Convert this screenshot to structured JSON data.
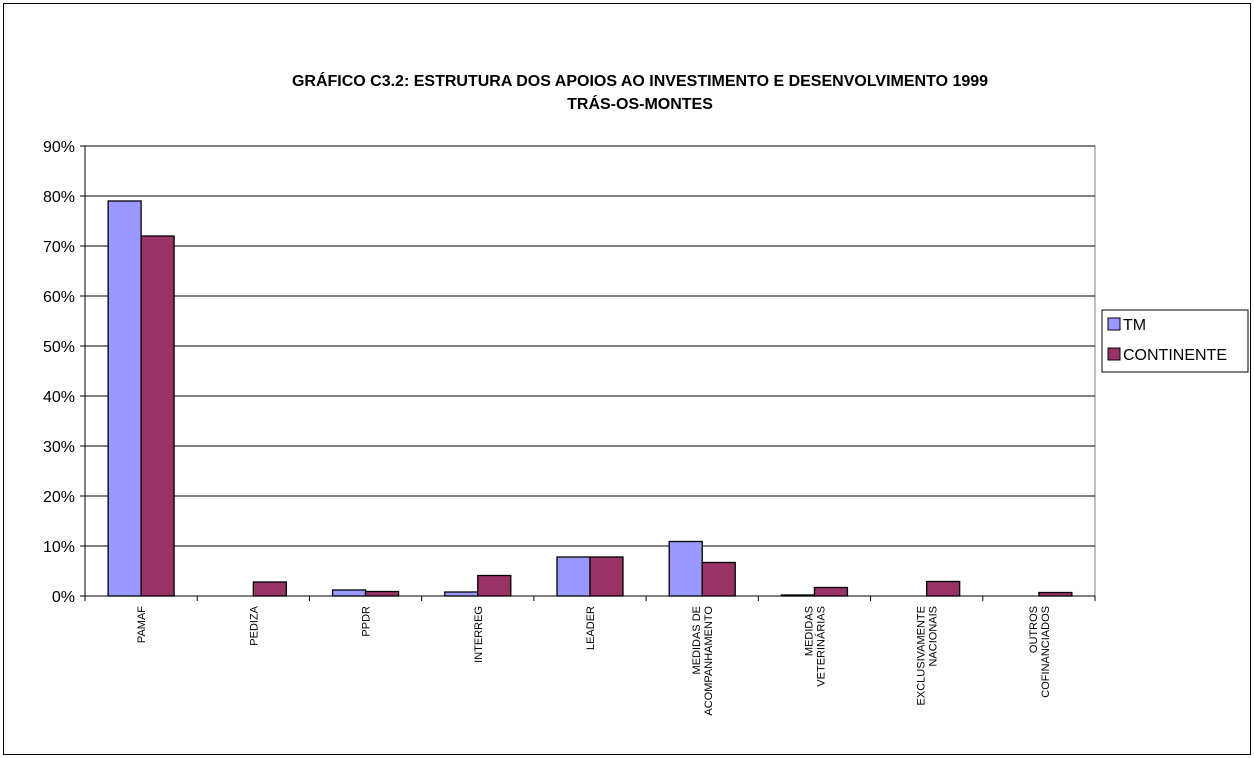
{
  "chart_data": {
    "type": "bar",
    "title": [
      "GRÁFICO C3.2: ESTRUTURA DOS APOIOS AO INVESTIMENTO E DESENVOLVIMENTO 1999",
      "TRÁS-OS-MONTES"
    ],
    "categories": [
      "PAMAF",
      "PEDIZA",
      "PPDR",
      "INTERREG",
      "LEADER",
      "MEDIDAS DE\nACOMPANHAMENTO",
      "MEDIDAS\nVETERINÁRIAS",
      "EXCLUSIVAMENTE\nNACIONAIS",
      "OUTROS\nCOFINANCIADOS"
    ],
    "series": [
      {
        "name": "TM",
        "color": "#9999ff",
        "values": [
          79,
          0,
          1.2,
          0.8,
          7.8,
          10.9,
          0.2,
          0,
          0
        ]
      },
      {
        "name": "CONTINENTE",
        "color": "#993366",
        "values": [
          72,
          2.8,
          0.9,
          4.1,
          7.8,
          6.7,
          1.7,
          2.9,
          0.7
        ]
      }
    ],
    "ylim": [
      0,
      90
    ],
    "yticks": [
      {
        "value": 0,
        "label": "0%"
      },
      {
        "value": 10,
        "label": "10%"
      },
      {
        "value": 20,
        "label": "20%"
      },
      {
        "value": 30,
        "label": "30%"
      },
      {
        "value": 40,
        "label": "40%"
      },
      {
        "value": 50,
        "label": "50%"
      },
      {
        "value": 60,
        "label": "60%"
      },
      {
        "value": 70,
        "label": "70%"
      },
      {
        "value": 80,
        "label": "80%"
      },
      {
        "value": 90,
        "label": "90%"
      }
    ],
    "grid": true,
    "legend": "right"
  }
}
